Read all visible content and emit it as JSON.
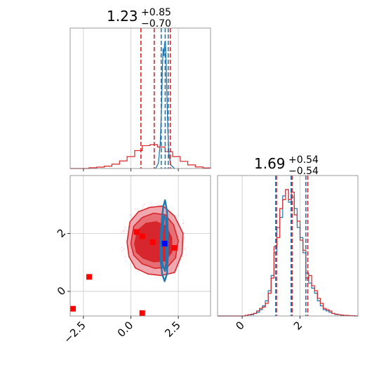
{
  "colors": {
    "red": "#d62728",
    "blue": "#1f77b4",
    "marker_red": "#ff0000",
    "marker_blue": "#0000ff",
    "grid": "#c8c8c8",
    "frame": "#808080"
  },
  "chart_data": {
    "type": "corner",
    "parameters": [
      {
        "title_value": "1.23",
        "title_plus": "+0.85",
        "title_minus": "−0.70"
      },
      {
        "title_value": "1.69",
        "title_plus": "+0.54",
        "title_minus": "−0.54"
      }
    ],
    "series": [
      {
        "name": "",
        "color": "#d62728"
      },
      {
        "name": "",
        "color": "#1f77b4"
      }
    ],
    "marginal_1": {
      "xlim": [
        -3.2,
        4.2
      ],
      "red": {
        "bins": [
          -2.2,
          -1.8,
          -1.4,
          -1.0,
          -0.6,
          -0.2,
          0.2,
          0.6,
          1.0,
          1.4,
          1.8,
          2.2,
          2.6,
          3.0,
          3.4,
          3.8,
          4.2
        ],
        "density": [
          0.004,
          0.007,
          0.012,
          0.022,
          0.038,
          0.06,
          0.09,
          0.115,
          0.12,
          0.108,
          0.085,
          0.06,
          0.036,
          0.018,
          0.008,
          0.003
        ],
        "quantiles": [
          0.53,
          1.23,
          2.08
        ]
      },
      "blue": {
        "curve_x": [
          1.3,
          1.45,
          1.55,
          1.62,
          1.66,
          1.7,
          1.74,
          1.78,
          1.82,
          1.86,
          1.9,
          1.95,
          2.0,
          2.1,
          2.3
        ],
        "curve_y": [
          0.0,
          0.04,
          0.2,
          0.5,
          0.78,
          0.94,
          0.88,
          0.98,
          1.0,
          0.82,
          0.58,
          0.3,
          0.12,
          0.03,
          0.0
        ],
        "quantiles": [
          1.6,
          1.81,
          1.97
        ]
      }
    },
    "joint": {
      "xlim": [
        -3.2,
        4.2
      ],
      "ylim": [
        -0.85,
        4.0
      ],
      "red_contours": [
        [
          [
            -0.2,
            1.7
          ],
          [
            -0.05,
            2.4
          ],
          [
            0.4,
            2.75
          ],
          [
            1.0,
            2.9
          ],
          [
            1.7,
            2.95
          ],
          [
            2.3,
            2.6
          ],
          [
            2.75,
            2.0
          ],
          [
            2.7,
            1.3
          ],
          [
            2.3,
            0.65
          ],
          [
            1.6,
            0.55
          ],
          [
            0.9,
            0.6
          ],
          [
            0.25,
            0.8
          ],
          [
            -0.1,
            1.2
          ]
        ],
        [
          [
            0.0,
            1.65
          ],
          [
            0.15,
            2.25
          ],
          [
            0.6,
            2.55
          ],
          [
            1.2,
            2.7
          ],
          [
            1.8,
            2.65
          ],
          [
            2.25,
            2.3
          ],
          [
            2.5,
            1.75
          ],
          [
            2.35,
            1.15
          ],
          [
            1.9,
            0.82
          ],
          [
            1.25,
            0.8
          ],
          [
            0.6,
            0.95
          ],
          [
            0.15,
            1.25
          ]
        ],
        [
          [
            0.2,
            1.65
          ],
          [
            0.35,
            2.1
          ],
          [
            0.8,
            2.35
          ],
          [
            1.35,
            2.4
          ],
          [
            1.85,
            2.25
          ],
          [
            2.15,
            1.85
          ],
          [
            2.15,
            1.35
          ],
          [
            1.8,
            1.05
          ],
          [
            1.2,
            1.02
          ],
          [
            0.65,
            1.15
          ],
          [
            0.3,
            1.35
          ]
        ]
      ],
      "blue_contours": [
        [
          [
            1.55,
            1.4
          ],
          [
            1.6,
            2.2
          ],
          [
            1.7,
            2.9
          ],
          [
            1.8,
            3.15
          ],
          [
            1.9,
            2.8
          ],
          [
            1.95,
            2.0
          ],
          [
            1.95,
            1.2
          ],
          [
            1.9,
            0.6
          ],
          [
            1.78,
            0.35
          ],
          [
            1.65,
            0.6
          ],
          [
            1.58,
            1.0
          ]
        ],
        [
          [
            1.6,
            1.3
          ],
          [
            1.65,
            2.0
          ],
          [
            1.75,
            2.6
          ],
          [
            1.85,
            2.5
          ],
          [
            1.88,
            1.8
          ],
          [
            1.88,
            1.1
          ],
          [
            1.8,
            0.7
          ],
          [
            1.68,
            0.9
          ]
        ]
      ],
      "red_scatter": [
        {
          "x": 0.3,
          "y": 2.05
        },
        {
          "x": 0.6,
          "y": 1.9
        },
        {
          "x": 1.15,
          "y": 1.7
        },
        {
          "x": 2.3,
          "y": 1.5
        },
        {
          "x": -2.2,
          "y": 0.5
        },
        {
          "x": -3.05,
          "y": -0.6
        },
        {
          "x": 0.6,
          "y": -0.75
        }
      ],
      "blue_scatter": [
        {
          "x": 1.78,
          "y": 1.65
        }
      ]
    },
    "marginal_2": {
      "xlim": [
        -0.85,
        4.0
      ],
      "red": {
        "bins": [
          0.1,
          0.2,
          0.3,
          0.4,
          0.5,
          0.6,
          0.7,
          0.8,
          0.9,
          1.0,
          1.1,
          1.2,
          1.3,
          1.4,
          1.5,
          1.6,
          1.7,
          1.8,
          1.9,
          2.0,
          2.1,
          2.2,
          2.3,
          2.4,
          2.5,
          2.6,
          2.7,
          2.8,
          2.9,
          3.0,
          3.1,
          3.2,
          3.3,
          3.4,
          3.5,
          3.6,
          3.7,
          3.8,
          3.9
        ],
        "density": [
          0.005,
          0.01,
          0.015,
          0.02,
          0.04,
          0.06,
          0.07,
          0.1,
          0.18,
          0.3,
          0.55,
          0.62,
          0.85,
          0.92,
          1.0,
          0.92,
          0.98,
          0.8,
          0.75,
          0.6,
          0.52,
          0.3,
          0.32,
          0.24,
          0.2,
          0.14,
          0.1,
          0.06,
          0.05,
          0.04,
          0.02,
          0.015,
          0.01,
          0.008,
          0.005,
          0.004,
          0.003,
          0.002
        ],
        "quantiles": [
          1.15,
          1.69,
          2.23
        ]
      },
      "blue": {
        "bins": [
          0.1,
          0.2,
          0.3,
          0.4,
          0.5,
          0.6,
          0.7,
          0.8,
          0.9,
          1.0,
          1.1,
          1.2,
          1.3,
          1.4,
          1.5,
          1.6,
          1.7,
          1.8,
          1.9,
          2.0,
          2.1,
          2.2,
          2.3,
          2.4,
          2.5,
          2.6,
          2.7,
          2.8,
          2.9,
          3.0,
          3.1,
          3.2,
          3.3,
          3.4,
          3.5,
          3.6,
          3.7,
          3.8,
          3.9
        ],
        "density": [
          0.004,
          0.008,
          0.01,
          0.02,
          0.03,
          0.05,
          0.08,
          0.12,
          0.2,
          0.32,
          0.5,
          0.7,
          0.78,
          0.95,
          1.0,
          0.9,
          0.94,
          0.85,
          0.7,
          0.62,
          0.5,
          0.34,
          0.26,
          0.22,
          0.18,
          0.12,
          0.08,
          0.05,
          0.04,
          0.03,
          0.02,
          0.012,
          0.01,
          0.006,
          0.005,
          0.004,
          0.002,
          0.002
        ],
        "quantiles": [
          1.16,
          1.69,
          2.2
        ]
      }
    },
    "x_ticks_param1": [
      "−2.5",
      "0.0",
      "2.5"
    ],
    "x_ticks_param1_values": [
      -2.5,
      0.0,
      2.5
    ],
    "y_ticks_param2": [
      "0",
      "2"
    ],
    "y_ticks_param2_values": [
      0,
      2
    ],
    "x_ticks_param2": [
      "0",
      "2"
    ],
    "x_ticks_param2_values": [
      0,
      2
    ]
  }
}
